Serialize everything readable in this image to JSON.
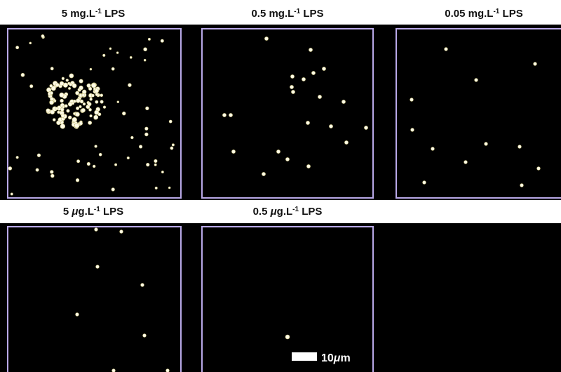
{
  "panels": [
    {
      "title": [
        {
          "text": "5 mg.L"
        },
        {
          "text": "-1",
          "style": "sup"
        },
        {
          "text": " LPS"
        }
      ]
    },
    {
      "title": [
        {
          "text": "0.5 mg.L"
        },
        {
          "text": "-1",
          "style": "sup"
        },
        {
          "text": " LPS"
        }
      ]
    },
    {
      "title": [
        {
          "text": "0.05 mg.L"
        },
        {
          "text": "-1",
          "style": "sup"
        },
        {
          "text": " LPS"
        }
      ]
    },
    {
      "title": [
        {
          "text": "5 "
        },
        {
          "text": "μ",
          "style": "italic"
        },
        {
          "text": "g.L"
        },
        {
          "text": "-1",
          "style": "sup"
        },
        {
          "text": " LPS"
        }
      ]
    },
    {
      "title": [
        {
          "text": "0.5 "
        },
        {
          "text": "μ",
          "style": "italic"
        },
        {
          "text": "g.L"
        },
        {
          "text": "-1",
          "style": "sup"
        },
        {
          "text": " LPS"
        }
      ]
    }
  ],
  "scale_bar": [
    {
      "text": "10"
    },
    {
      "text": "μ",
      "style": "italic"
    },
    {
      "text": "m"
    }
  ]
}
